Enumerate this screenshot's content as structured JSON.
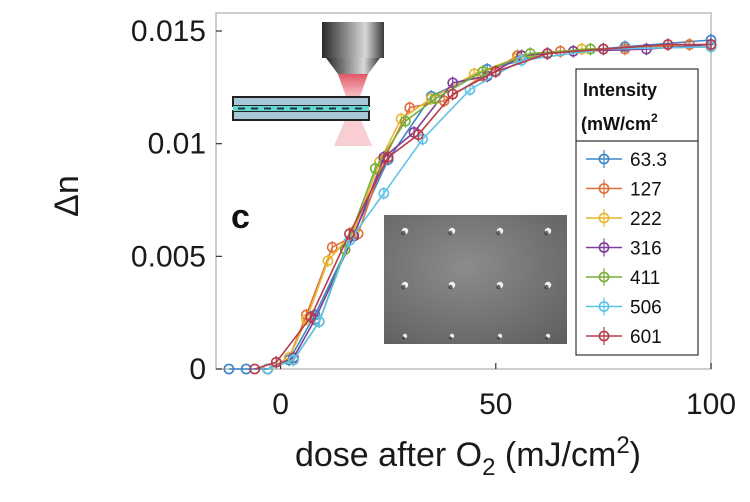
{
  "chart_data": {
    "type": "line",
    "panel_label": "c",
    "xlabel_main": "dose after O",
    "xlabel_sub": "2",
    "xlabel_units": " (mJ/cm",
    "xlabel_sup": "2",
    "xlabel_end": ")",
    "ylabel": "Δn",
    "xlim": [
      -15,
      100
    ],
    "ylim": [
      0,
      0.0158
    ],
    "xticks": [
      0,
      50,
      100
    ],
    "xtick_labels": [
      "0",
      "50",
      "100"
    ],
    "yticks": [
      0,
      0.005,
      0.01,
      0.015
    ],
    "ytick_labels": [
      "0",
      "0.005",
      "0.01",
      "0.015"
    ],
    "grid": false,
    "legend": {
      "placement": "right",
      "title_line1": "Intensity",
      "title_line2": "(mW/cm",
      "title_sup": "2"
    },
    "series": [
      {
        "name": "63.3",
        "color": "#3a86c8",
        "x": [
          -12,
          -8,
          -3,
          2,
          8,
          17,
          25,
          35,
          48,
          62,
          80,
          100
        ],
        "y": [
          0,
          0,
          0,
          0.0004,
          0.0024,
          0.006,
          0.0093,
          0.0121,
          0.0133,
          0.014,
          0.0143,
          0.0146
        ]
      },
      {
        "name": "127",
        "color": "#e0703a",
        "x": [
          -3,
          2,
          6,
          12,
          18,
          24,
          30,
          38,
          47,
          55,
          65,
          80,
          95
        ],
        "y": [
          0,
          0.0005,
          0.0024,
          0.0054,
          0.006,
          0.0093,
          0.0116,
          0.0119,
          0.013,
          0.0139,
          0.0141,
          0.0142,
          0.0144
        ]
      },
      {
        "name": "222",
        "color": "#e8b730",
        "x": [
          -3,
          2,
          6,
          11,
          17,
          23,
          28,
          35,
          45,
          55,
          70,
          100
        ],
        "y": [
          0,
          0.0005,
          0.0022,
          0.0048,
          0.0061,
          0.0092,
          0.0111,
          0.012,
          0.0131,
          0.0138,
          0.0142,
          0.0143
        ]
      },
      {
        "name": "316",
        "color": "#7e3f98",
        "x": [
          -3,
          3,
          8,
          17,
          24,
          31,
          40,
          48,
          56,
          68,
          85,
          100
        ],
        "y": [
          0,
          0.0005,
          0.0022,
          0.0059,
          0.0094,
          0.0105,
          0.0127,
          0.013,
          0.0139,
          0.0141,
          0.0142,
          0.0144
        ]
      },
      {
        "name": "411",
        "color": "#78ad3c",
        "x": [
          -3,
          3,
          9,
          15,
          22,
          29,
          36,
          47,
          58,
          72,
          100
        ],
        "y": [
          0,
          0.0004,
          0.0021,
          0.0053,
          0.0089,
          0.011,
          0.012,
          0.0132,
          0.014,
          0.0142,
          0.0143
        ]
      },
      {
        "name": "506",
        "color": "#5fc3e8",
        "x": [
          -3,
          3,
          9,
          16,
          24,
          33,
          44,
          56,
          75,
          100
        ],
        "y": [
          0,
          0.0004,
          0.0021,
          0.0057,
          0.0078,
          0.0102,
          0.0124,
          0.0137,
          0.0142,
          0.0143
        ]
      },
      {
        "name": "601",
        "color": "#b83b4b",
        "x": [
          -6,
          -1,
          7,
          16,
          25,
          32,
          40,
          50,
          62,
          75,
          90,
          100
        ],
        "y": [
          0,
          0.0003,
          0.0023,
          0.006,
          0.0094,
          0.0104,
          0.0122,
          0.0132,
          0.014,
          0.0142,
          0.0144,
          0.0144
        ]
      }
    ]
  }
}
